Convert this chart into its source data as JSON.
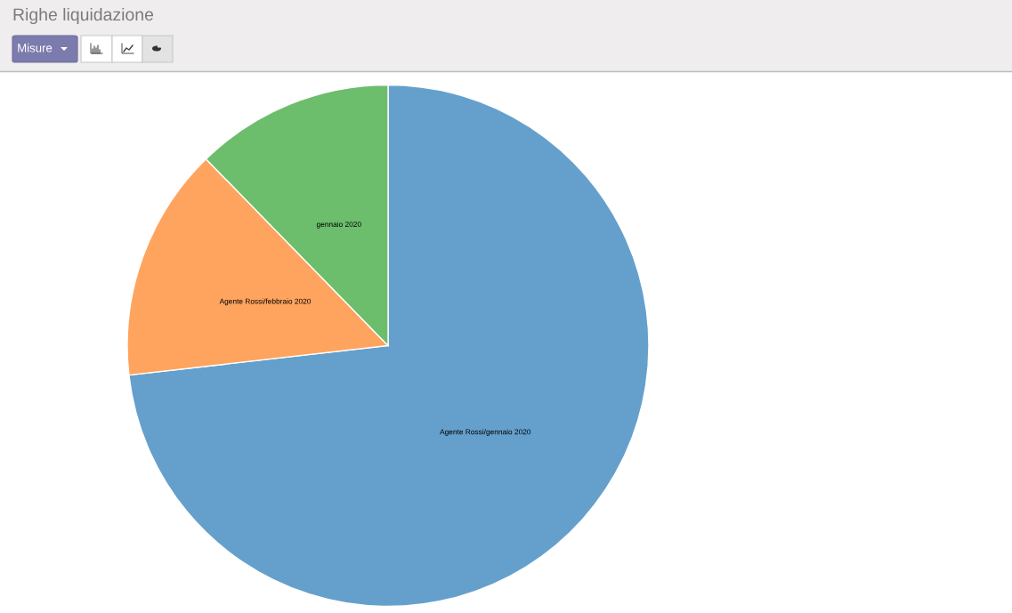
{
  "chart_data": {
    "type": "pie",
    "title": "Righe liquidazione",
    "categories": [
      "Agente Rossi/gennaio 2020",
      "Agente Rossi/febbraio 2020",
      "gennaio 2020"
    ],
    "values": [
      73.2,
      14.5,
      12.3
    ],
    "colors": [
      "#65a0cc",
      "#ffa45e",
      "#6cbd6c"
    ],
    "annotations": [
      "Misure"
    ]
  }
}
